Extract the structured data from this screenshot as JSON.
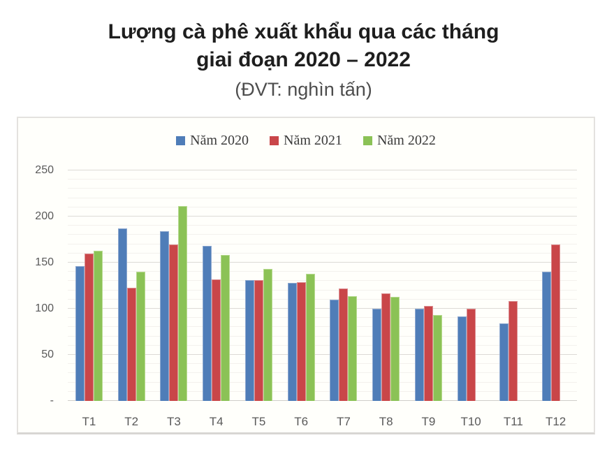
{
  "title": {
    "line1": "Lượng cà phê xuất khẩu qua các tháng",
    "line2": "giai đoạn 2020 – 2022"
  },
  "subtitle": "(ĐVT: nghìn tấn)",
  "chart_data": {
    "type": "bar",
    "title": "Lượng cà phê xuất khẩu qua các tháng giai đoạn 2020 – 2022",
    "unit_note": "(ĐVT: nghìn tấn)",
    "categories": [
      "T1",
      "T2",
      "T3",
      "T4",
      "T5",
      "T6",
      "T7",
      "T8",
      "T9",
      "T10",
      "T11",
      "T12"
    ],
    "series": [
      {
        "name": "Năm 2020",
        "color": "#4f7db8",
        "border_color": "#8fa9d0",
        "values": [
          146,
          187,
          184,
          168,
          131,
          128,
          110,
          100,
          100,
          92,
          84,
          140
        ]
      },
      {
        "name": "Năm 2021",
        "color": "#c94649",
        "border_color": "#dc9092",
        "values": [
          160,
          123,
          170,
          132,
          131,
          129,
          122,
          117,
          103,
          100,
          108,
          170
        ]
      },
      {
        "name": "Năm 2022",
        "color": "#8bc256",
        "border_color": "#b9db92",
        "values": [
          163,
          140,
          211,
          158,
          143,
          138,
          114,
          113,
          93,
          null,
          null,
          null
        ]
      }
    ],
    "xlabel": "",
    "ylabel": "",
    "ylim": [
      0,
      250
    ],
    "y_major_ticks": [
      0,
      50,
      100,
      150,
      200,
      250
    ],
    "y_tick_labels": [
      "-",
      "50",
      "100",
      "150",
      "200",
      "250"
    ],
    "y_minor_step": 10,
    "grid": true,
    "legend_position": "top"
  }
}
